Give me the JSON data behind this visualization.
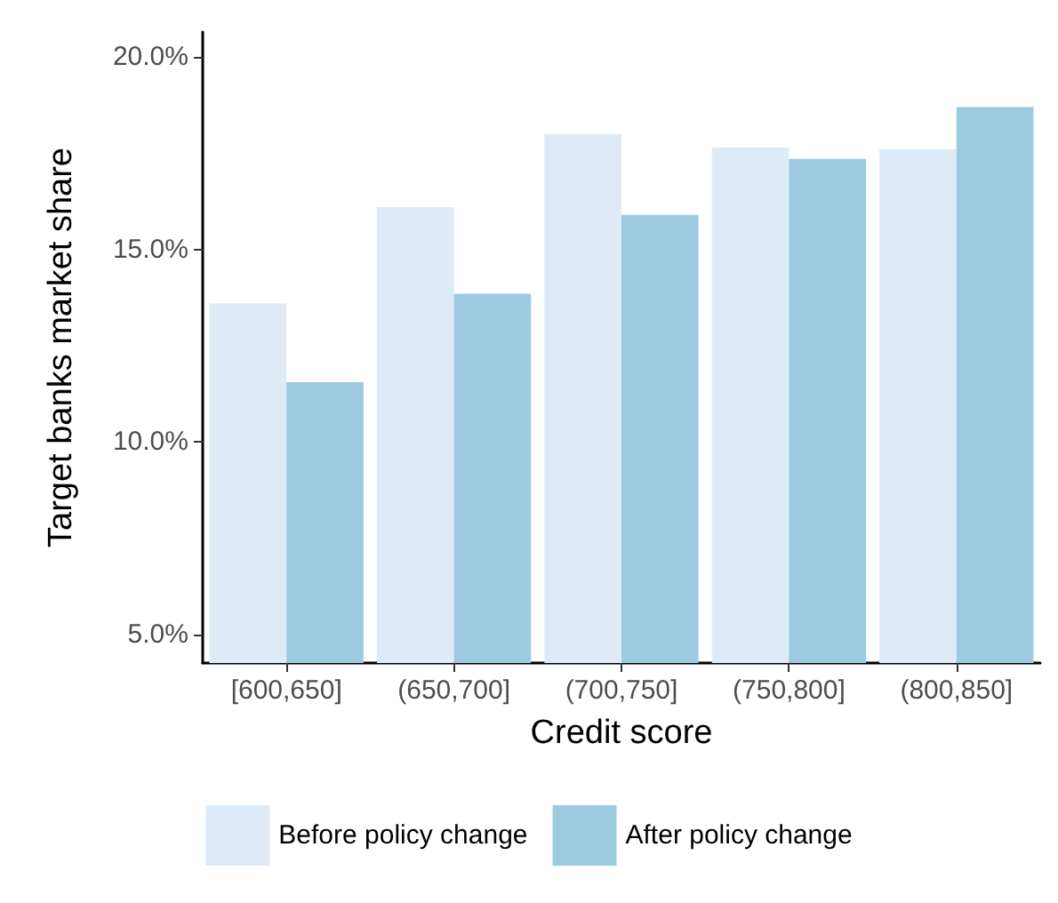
{
  "chart_data": {
    "type": "bar",
    "xlabel": "Credit score",
    "ylabel": "Target banks market share",
    "categories": [
      "[600,650]",
      "(650,700]",
      "(700,750]",
      "(750,800]",
      "(800,850]"
    ],
    "series": [
      {
        "name": "Before policy change",
        "color": "#deebf7",
        "values": [
          13.6,
          16.1,
          18.0,
          17.65,
          17.6
        ]
      },
      {
        "name": "After policy change",
        "color": "#9ecae1",
        "values": [
          11.55,
          13.85,
          15.9,
          17.35,
          18.7
        ]
      }
    ],
    "ylim": [
      4.25,
      20.65
    ],
    "yticks": [
      {
        "value": 5,
        "label": "5.0%"
      },
      {
        "value": 10,
        "label": "10.0%"
      },
      {
        "value": 15,
        "label": "15.0%"
      },
      {
        "value": 20,
        "label": "20.0%"
      }
    ],
    "grid": false,
    "legend": "bottom"
  }
}
